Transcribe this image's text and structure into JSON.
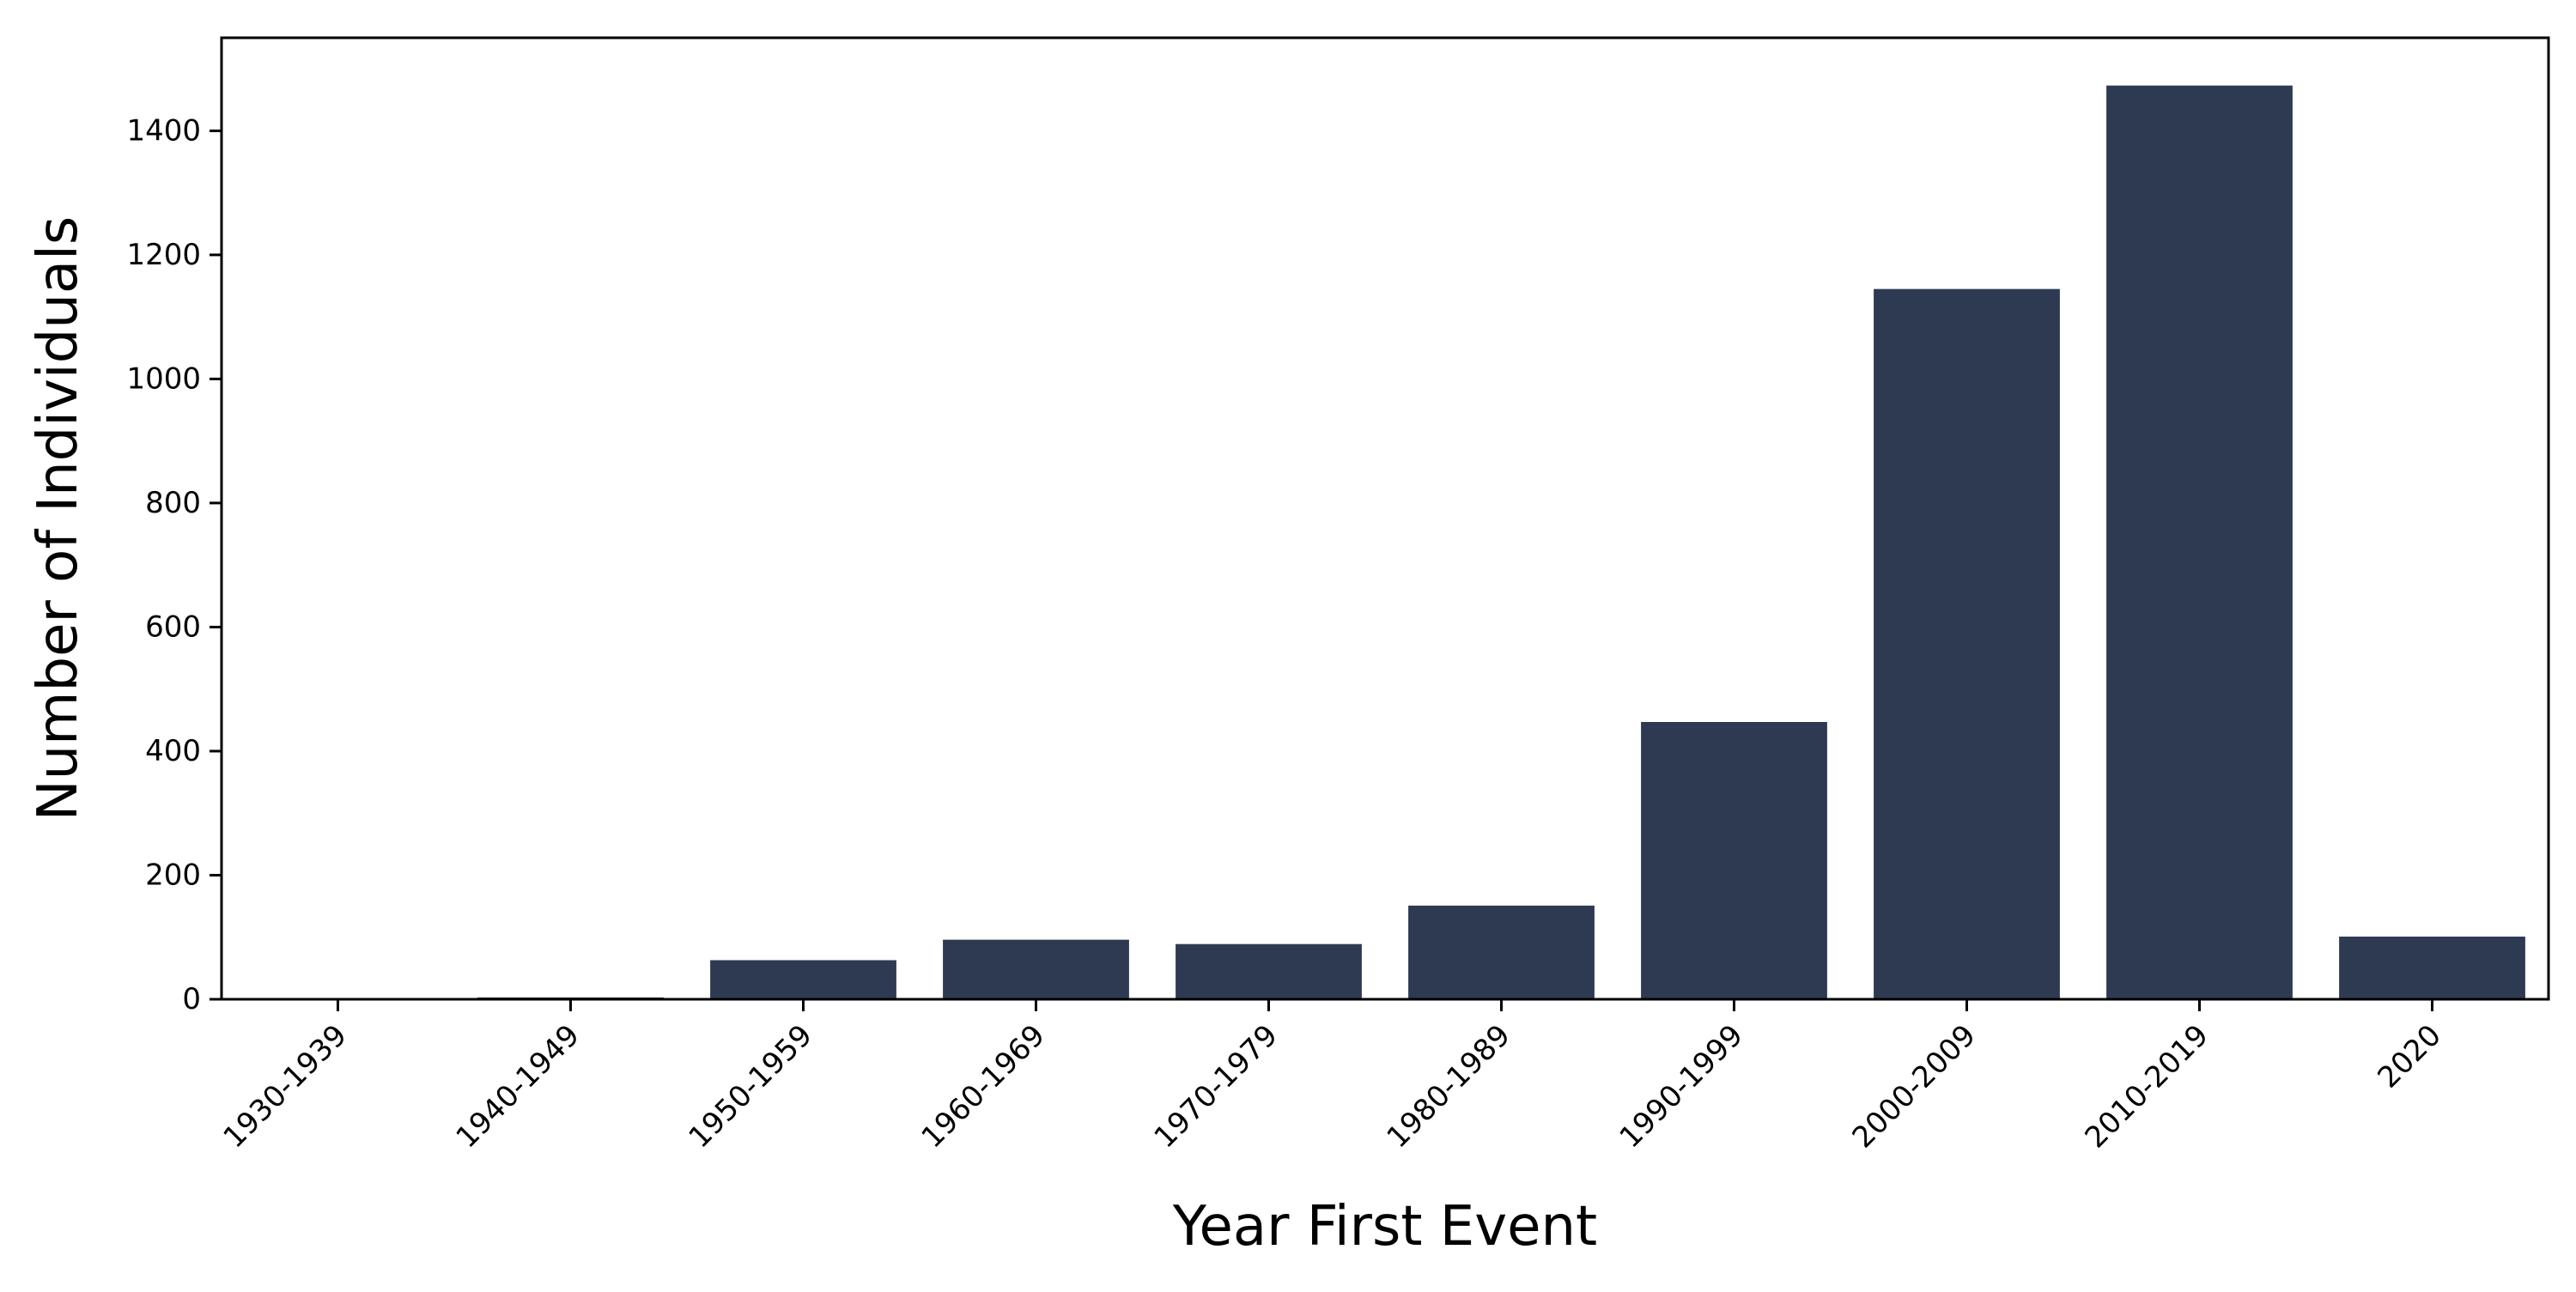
{
  "chart_data": {
    "type": "bar",
    "title": "",
    "xlabel": "Year First Event",
    "ylabel": "Number of Individuals",
    "categories": [
      "1930-1939",
      "1940-1949",
      "1950-1959",
      "1960-1969",
      "1970-1979",
      "1980-1989",
      "1990-1999",
      "2000-2009",
      "2010-2019",
      "2020"
    ],
    "values": [
      1,
      3,
      63,
      96,
      89,
      151,
      447,
      1145,
      1473,
      101
    ],
    "ylim": [
      0,
      1550
    ],
    "yticks": [
      0,
      200,
      400,
      600,
      800,
      1000,
      1200,
      1400
    ],
    "grid": false,
    "legend": "none",
    "bar_color": "#2d3a52"
  }
}
